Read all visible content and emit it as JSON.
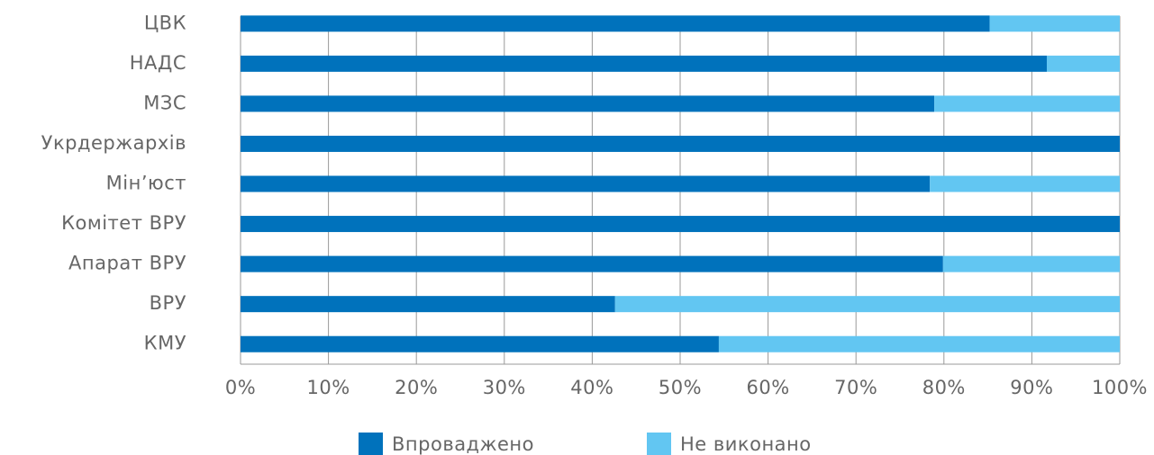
{
  "chart_data": {
    "type": "stacked-bar-horizontal",
    "categories": [
      "ЦВК",
      "НАДС",
      "МЗС",
      "Укрдержархів",
      "Мін’юст",
      "Комітет ВРУ",
      "Апарат ВРУ",
      "ВРУ",
      "КМУ"
    ],
    "series": [
      {
        "name": "Впроваджено",
        "color": "#0072bc",
        "values": [
          85.2,
          91.7,
          78.9,
          100,
          78.4,
          100,
          79.9,
          42.6,
          54.4
        ]
      },
      {
        "name": "Не виконано",
        "color": "#62c6f2",
        "values": [
          14.8,
          8.3,
          21.1,
          0,
          21.6,
          0,
          20.1,
          57.4,
          45.6
        ]
      }
    ],
    "xlim": [
      0,
      100
    ],
    "xticks": [
      {
        "value": 0,
        "label": "0%"
      },
      {
        "value": 10,
        "label": "10%"
      },
      {
        "value": 20,
        "label": "20%"
      },
      {
        "value": 30,
        "label": "30%"
      },
      {
        "value": 40,
        "label": "40%"
      },
      {
        "value": 50,
        "label": "50%"
      },
      {
        "value": 60,
        "label": "60%"
      },
      {
        "value": 70,
        "label": "70%"
      },
      {
        "value": 80,
        "label": "80%"
      },
      {
        "value": 90,
        "label": "90%"
      },
      {
        "value": 100,
        "label": "100%"
      }
    ],
    "grid": true,
    "legend": "bottom"
  }
}
